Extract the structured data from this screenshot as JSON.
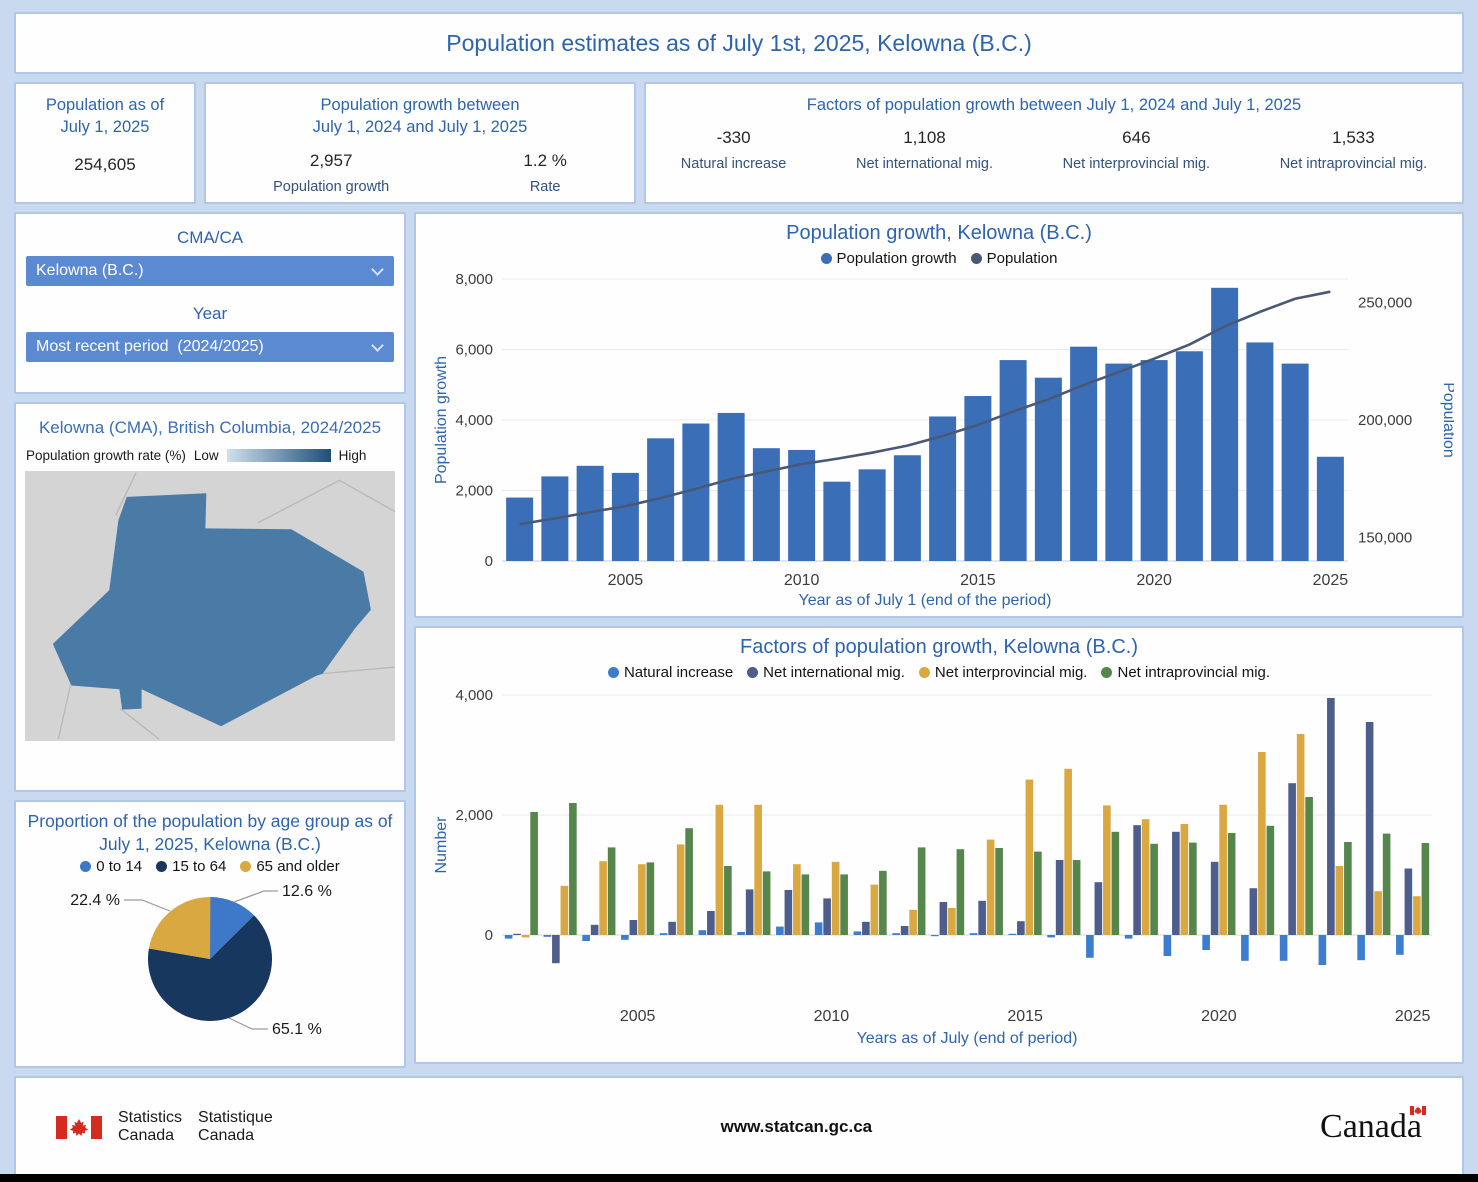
{
  "title": "Population estimates as of July 1st, 2025, Kelowna (B.C.)",
  "stats": {
    "population": {
      "heading": "Population as of\nJuly 1, 2025",
      "value": "254,605"
    },
    "growth": {
      "heading": "Population growth between\nJuly 1, 2024 and July 1, 2025",
      "items": [
        {
          "value": "2,957",
          "label": "Population growth"
        },
        {
          "value": "1.2 %",
          "label": "Rate"
        }
      ]
    },
    "factors": {
      "heading": "Factors of population growth between July 1, 2024 and July 1, 2025",
      "items": [
        {
          "value": "-330",
          "label": "Natural increase"
        },
        {
          "value": "1,108",
          "label": "Net international mig."
        },
        {
          "value": "646",
          "label": "Net interprovincial mig."
        },
        {
          "value": "1,533",
          "label": "Net intraprovincial mig."
        }
      ]
    }
  },
  "controls": {
    "cma_label": "CMA/CA",
    "cma_value": "Kelowna (B.C.)",
    "year_label": "Year",
    "year_value": "Most recent period  (2024/2025)"
  },
  "map": {
    "heading": "Kelowna (CMA), British Columbia, 2024/2025",
    "legend_label": "Population growth rate (%)",
    "legend_low": "Low",
    "legend_high": "High"
  },
  "footer": {
    "statcan_en": "Statistics\nCanada",
    "statcan_fr": "Statistique\nCanada",
    "url": "www.statcan.gc.ca",
    "wordmark": "Canada"
  },
  "colors": {
    "bar_blue": "#3a6fb7",
    "line_navy": "#4a5878",
    "factor_blue": "#3c7dd0",
    "factor_navy": "#4d5d8c",
    "factor_gold": "#d9a841",
    "factor_green": "#55864c",
    "pie_blue": "#3d78c9",
    "pie_navy": "#17375e",
    "pie_gold": "#d9a841",
    "map_region": "#4a7ba6",
    "map_bg": "#d4d4d4",
    "gradient_low": "#cfe0ee",
    "gradient_high": "#1f4e79",
    "heading_blue": "#2e64ad",
    "tick_gray": "#3c3c3c",
    "flag_red": "#d52b1e"
  },
  "chart_data": [
    {
      "id": "growth",
      "type": "bar",
      "title": "Population growth, Kelowna (B.C.)",
      "xlabel": "Year as of July 1 (end of the period)",
      "ylabel_left": "Population growth",
      "ylabel_right": "Population",
      "legend": [
        "Population growth",
        "Population"
      ],
      "categories": [
        2002,
        2003,
        2004,
        2005,
        2006,
        2007,
        2008,
        2009,
        2010,
        2011,
        2012,
        2013,
        2014,
        2015,
        2016,
        2017,
        2018,
        2019,
        2020,
        2021,
        2022,
        2023,
        2024,
        2025
      ],
      "bar_series": {
        "name": "Population growth",
        "values": [
          1800,
          2400,
          2700,
          2500,
          3480,
          3900,
          4200,
          3200,
          3150,
          2250,
          2600,
          3000,
          4100,
          4680,
          5700,
          5200,
          6080,
          5600,
          5700,
          5950,
          7750,
          6200,
          5600,
          2957
        ]
      },
      "line_series": {
        "name": "Population",
        "values": [
          155700,
          158100,
          160800,
          163300,
          166800,
          170700,
          174900,
          178100,
          181200,
          183500,
          186100,
          189100,
          193200,
          197900,
          203600,
          208800,
          214900,
          220400,
          226100,
          232100,
          239800,
          246000,
          251600,
          254605
        ]
      },
      "ylim_left": [
        0,
        8000
      ],
      "yticks_left": [
        0,
        2000,
        4000,
        6000,
        8000
      ],
      "ylim_right": [
        140000,
        260000
      ],
      "yticks_right": [
        150000,
        200000,
        250000
      ],
      "xticks": [
        2005,
        2010,
        2015,
        2020,
        2025
      ],
      "grid": true,
      "legend_position": "top"
    },
    {
      "id": "factors",
      "type": "grouped-bar",
      "title": "Factors of population growth, Kelowna (B.C.)",
      "xlabel": "Years as of July (end of period)",
      "ylabel": "Number",
      "categories": [
        2002,
        2003,
        2004,
        2005,
        2006,
        2007,
        2008,
        2009,
        2010,
        2011,
        2012,
        2013,
        2014,
        2015,
        2016,
        2017,
        2018,
        2019,
        2020,
        2021,
        2022,
        2023,
        2024,
        2025
      ],
      "series": [
        {
          "name": "Natural increase",
          "color_key": "factor_blue",
          "values": [
            -60,
            -30,
            -100,
            -80,
            30,
            80,
            50,
            140,
            210,
            60,
            30,
            -20,
            30,
            20,
            -40,
            -380,
            -60,
            -350,
            -250,
            -430,
            -430,
            -500,
            -420,
            -330
          ]
        },
        {
          "name": "Net international mig.",
          "color_key": "factor_navy",
          "values": [
            20,
            -470,
            170,
            250,
            220,
            400,
            760,
            750,
            610,
            220,
            150,
            550,
            570,
            230,
            1250,
            880,
            1830,
            1720,
            1220,
            780,
            2530,
            3950,
            3550,
            1108
          ]
        },
        {
          "name": "Net interprovincial mig.",
          "color_key": "factor_gold",
          "values": [
            -40,
            820,
            1230,
            1180,
            1510,
            2170,
            2170,
            1180,
            1220,
            840,
            420,
            450,
            1590,
            2590,
            2770,
            2160,
            1930,
            1850,
            2170,
            3050,
            3350,
            1150,
            730,
            646
          ]
        },
        {
          "name": "Net intraprovincial mig.",
          "color_key": "factor_green",
          "values": [
            2050,
            2200,
            1460,
            1210,
            1780,
            1150,
            1060,
            1010,
            1010,
            1070,
            1460,
            1430,
            1450,
            1390,
            1250,
            1720,
            1520,
            1540,
            1700,
            1820,
            2300,
            1550,
            1690,
            1533
          ]
        }
      ],
      "ylim": [
        -1000,
        4000
      ],
      "yticks": [
        0,
        2000,
        4000
      ],
      "xticks": [
        2005,
        2010,
        2015,
        2020,
        2025
      ],
      "grid": true,
      "legend_position": "top"
    },
    {
      "id": "age-pie",
      "type": "pie",
      "title": "Proportion of the population by age group as of July 1, 2025, Kelowna (B.C.)",
      "labels": [
        "0 to 14",
        "15 to 64",
        "65 and older"
      ],
      "values": [
        12.6,
        65.1,
        22.4
      ],
      "display_labels": [
        "12.6 %",
        "65.1 %",
        "22.4 %"
      ],
      "legend_position": "top"
    }
  ]
}
